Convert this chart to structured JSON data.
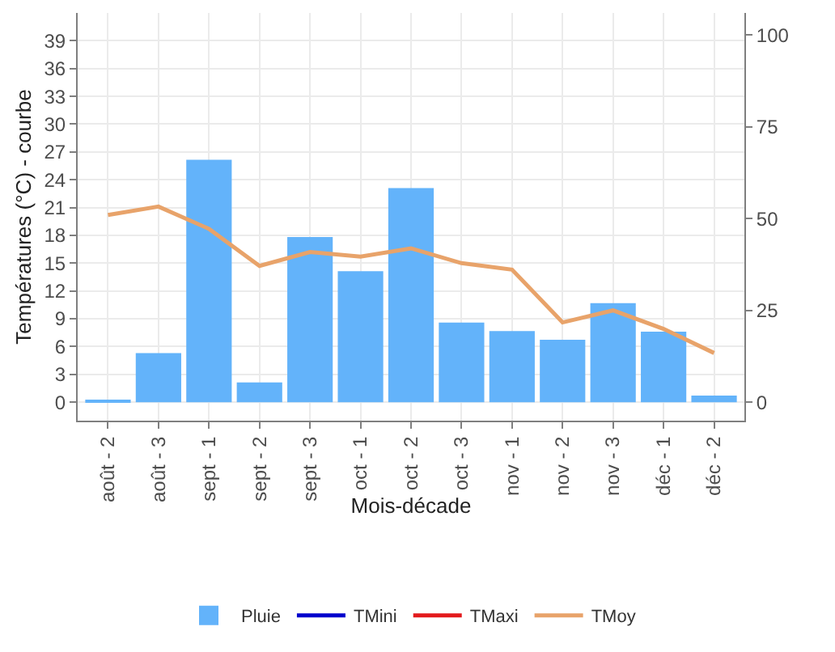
{
  "chart_data": {
    "type": "bar",
    "xlabel": "Mois-décade",
    "ylabel": "Températures (°C) - courbe",
    "categories": [
      "août - 2",
      "août - 3",
      "sept - 1",
      "sept - 2",
      "sept - 3",
      "oct - 1",
      "oct - 2",
      "oct - 3",
      "nov - 1",
      "nov - 2",
      "nov - 3",
      "déc - 1",
      "déc - 2"
    ],
    "series": [
      {
        "name": "Pluie",
        "axis": "y2",
        "color": "#63b3fa",
        "values": [
          0.3,
          13.4,
          66,
          5.4,
          45,
          35.7,
          58.3,
          21.7,
          19.4,
          17,
          27,
          19.2,
          1.8
        ]
      },
      {
        "name": "TMini",
        "type": "line",
        "color": "#0000cc",
        "values": [
          null,
          null,
          null,
          null,
          null,
          null,
          null,
          null,
          null,
          null,
          null,
          null,
          null
        ]
      },
      {
        "name": "TMaxi",
        "type": "line",
        "color": "#e31a1c",
        "values": [
          null,
          null,
          null,
          null,
          null,
          null,
          null,
          null,
          null,
          null,
          null,
          null,
          null
        ]
      },
      {
        "name": "TMoy",
        "type": "line",
        "color": "#e8a36a",
        "values": [
          20.2,
          21.1,
          18.7,
          14.7,
          16.2,
          15.7,
          16.6,
          15,
          14.3,
          8.6,
          9.9,
          7.9,
          5.3
        ]
      }
    ],
    "ylim": [
      -2,
      42
    ],
    "yticks": [
      0,
      3,
      6,
      9,
      12,
      15,
      18,
      21,
      24,
      27,
      30,
      33,
      36,
      39
    ],
    "y2lim": [
      -5,
      106
    ],
    "y2ticks": [
      0,
      25,
      50,
      75,
      100
    ],
    "grid": true,
    "legend": "bottom",
    "marker": "none",
    "line_style": "solid"
  }
}
